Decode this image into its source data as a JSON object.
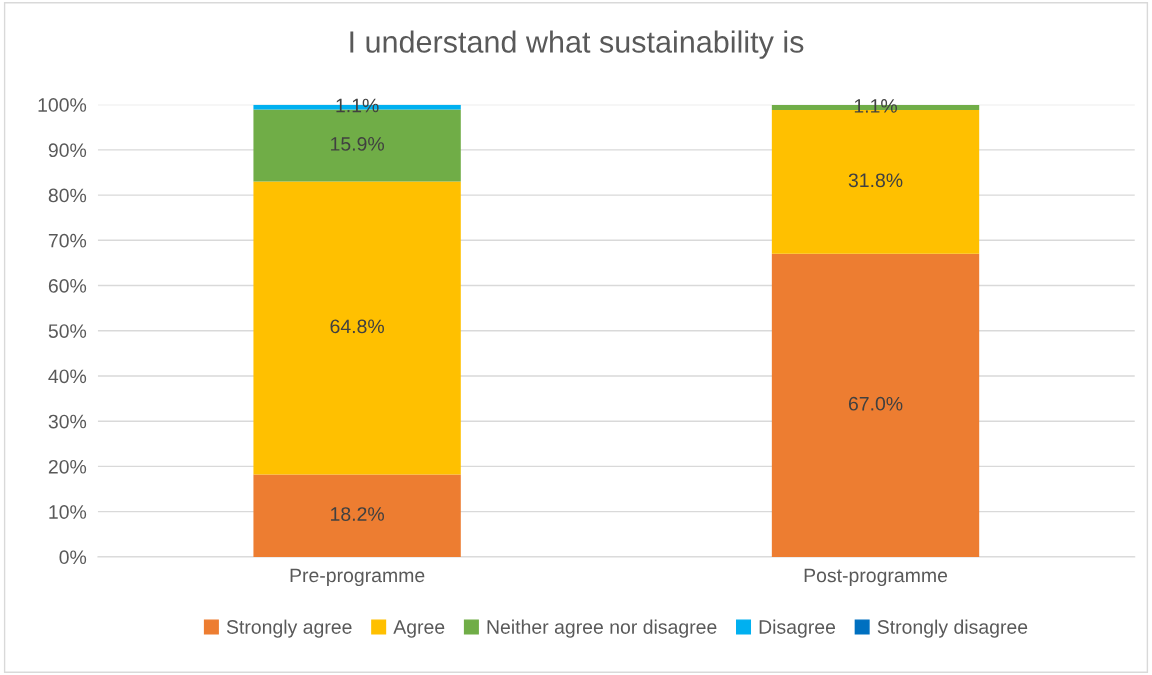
{
  "chart_data": {
    "type": "bar",
    "title": "I understand what sustainability is",
    "categories": [
      "Pre-programme",
      "Post-programme"
    ],
    "stacked": true,
    "series": [
      {
        "name": "Strongly agree",
        "color": "#ed7d31",
        "values": [
          18.2,
          67.0
        ],
        "value_labels": [
          "18.2%",
          "67.0%"
        ]
      },
      {
        "name": "Agree",
        "color": "#ffc000",
        "values": [
          64.8,
          31.8
        ],
        "value_labels": [
          "64.8%",
          "31.8%"
        ]
      },
      {
        "name": "Neither agree nor disagree",
        "color": "#70ad47",
        "values": [
          15.9,
          1.1
        ],
        "value_labels": [
          "15.9%",
          "1.1%"
        ]
      },
      {
        "name": "Disagree",
        "color": "#00b0f0",
        "values": [
          1.1,
          0
        ],
        "value_labels": [
          "1.1%",
          null
        ]
      },
      {
        "name": "Strongly disagree",
        "color": "#0070c0",
        "values": [
          0,
          0
        ],
        "value_labels": [
          null,
          null
        ]
      }
    ],
    "ylim": [
      0,
      100
    ],
    "yticks": [
      {
        "value": 0,
        "label": "0%"
      },
      {
        "value": 10,
        "label": "10%"
      },
      {
        "value": 20,
        "label": "20%"
      },
      {
        "value": 30,
        "label": "30%"
      },
      {
        "value": 40,
        "label": "40%"
      },
      {
        "value": 50,
        "label": "50%"
      },
      {
        "value": 60,
        "label": "60%"
      },
      {
        "value": 70,
        "label": "70%"
      },
      {
        "value": 80,
        "label": "80%"
      },
      {
        "value": 90,
        "label": "90%"
      },
      {
        "value": 100,
        "label": "100%"
      }
    ],
    "grid": "y",
    "legend": "bottom"
  }
}
